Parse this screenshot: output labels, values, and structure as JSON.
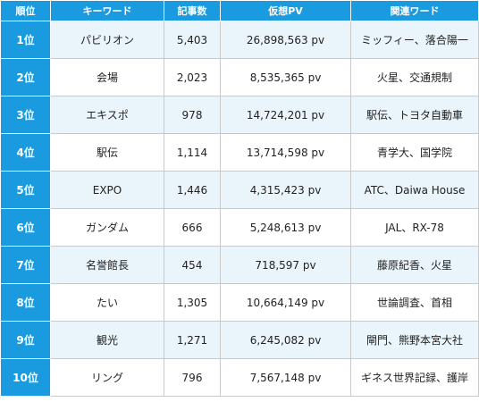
{
  "headers": {
    "rank": "順位",
    "keyword": "キーワード",
    "articles": "記事数",
    "pv": "仮想PV",
    "related": "関連ワード"
  },
  "rows": [
    {
      "rank": "1位",
      "keyword": "パビリオン",
      "articles": "5,403",
      "pv": "26,898,563 pv",
      "related": "ミッフィー、落合陽一"
    },
    {
      "rank": "2位",
      "keyword": "会場",
      "articles": "2,023",
      "pv": "8,535,365 pv",
      "related": "火星、交通規制"
    },
    {
      "rank": "3位",
      "keyword": "エキスポ",
      "articles": "978",
      "pv": "14,724,201 pv",
      "related": "駅伝、トヨタ自動車"
    },
    {
      "rank": "4位",
      "keyword": "駅伝",
      "articles": "1,114",
      "pv": "13,714,598 pv",
      "related": "青学大、国学院"
    },
    {
      "rank": "5位",
      "keyword": "EXPO",
      "articles": "1,446",
      "pv": "4,315,423 pv",
      "related": "ATC、Daiwa House"
    },
    {
      "rank": "6位",
      "keyword": "ガンダム",
      "articles": "666",
      "pv": "5,248,613 pv",
      "related": "JAL、RX-78"
    },
    {
      "rank": "7位",
      "keyword": "名誉館長",
      "articles": "454",
      "pv": "718,597 pv",
      "related": "藤原紀香、火星"
    },
    {
      "rank": "8位",
      "keyword": "たい",
      "articles": "1,305",
      "pv": "10,664,149 pv",
      "related": "世論調査、首相"
    },
    {
      "rank": "9位",
      "keyword": "観光",
      "articles": "1,271",
      "pv": "6,245,082 pv",
      "related": "閘門、熊野本宮大社"
    },
    {
      "rank": "10位",
      "keyword": "リング",
      "articles": "796",
      "pv": "7,567,148 pv",
      "related": "ギネス世界記録、護岸"
    }
  ],
  "colors": {
    "header_bg": "#1a9be0",
    "rank_bg": "#1a9be0",
    "stripe_bg": "#eaf4fb",
    "border": "#c9c9c9"
  }
}
